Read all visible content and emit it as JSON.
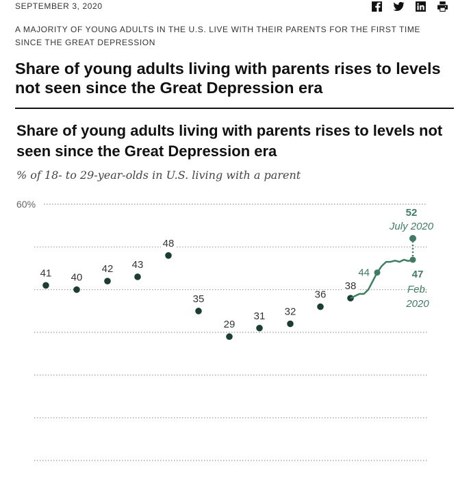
{
  "header": {
    "date": "SEPTEMBER 3, 2020",
    "share_icons": [
      "facebook-icon",
      "twitter-icon",
      "linkedin-icon",
      "print-icon"
    ]
  },
  "article": {
    "kicker": "A MAJORITY OF YOUNG ADULTS IN THE U.S. LIVE WITH THEIR PARENTS FOR THE FIRST TIME SINCE THE GREAT DEPRESSION",
    "headline": "Share of young adults living with parents rises to levels not seen since the Great Depression era"
  },
  "colors": {
    "dot": "#1a3d34",
    "line": "#3e7d62",
    "text": "#333333",
    "grid": "#999999"
  },
  "chart_data": {
    "type": "line",
    "title": "Share of young adults living with parents rises to levels not seen since the Great Depression era",
    "subtitle": "% of 18- to 29-year-olds in U.S. living with a parent",
    "ylim": [
      0,
      60
    ],
    "y_tick_label": "60%",
    "points": [
      {
        "label": "41",
        "value": 41
      },
      {
        "label": "40",
        "value": 40
      },
      {
        "label": "42",
        "value": 42
      },
      {
        "label": "43",
        "value": 43
      },
      {
        "label": "48",
        "value": 48
      },
      {
        "label": "35",
        "value": 35
      },
      {
        "label": "29",
        "value": 29
      },
      {
        "label": "31",
        "value": 31
      },
      {
        "label": "32",
        "value": 32
      },
      {
        "label": "36",
        "value": 36
      },
      {
        "label": "38",
        "value": 38
      }
    ],
    "monthly_line": [
      38,
      38.5,
      39,
      39,
      40,
      42,
      44,
      45.5,
      46.5,
      46.5,
      46.8,
      46.5,
      47,
      46.7,
      47
    ],
    "highlight_2010": "44",
    "annotation_feb": {
      "value": 47,
      "label_value": "47",
      "label_line1": "Feb.",
      "label_line2": "2020"
    },
    "annotation_july": {
      "value": 52,
      "label_value": "52",
      "label_line1": "July 2020"
    }
  }
}
